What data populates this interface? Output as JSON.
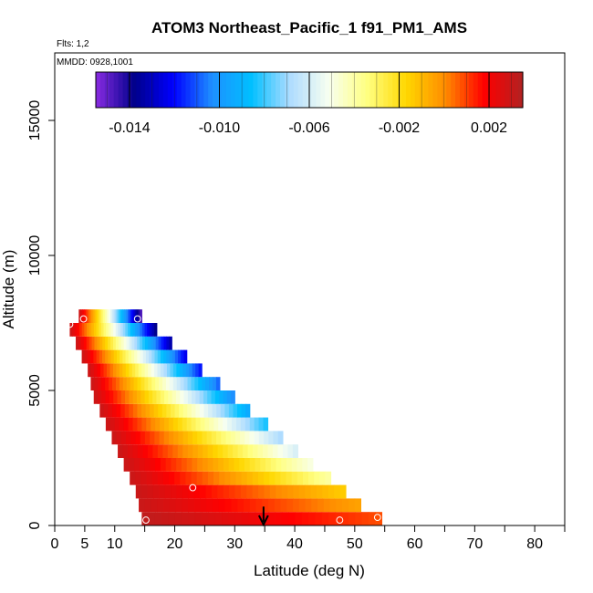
{
  "chart_data": {
    "type": "heatmap",
    "title": "ATOM3 Northeast_Pacific_1 f91_PM1_AMS",
    "annotations": {
      "flights": "Flts: 1,2",
      "dates": "MMDD: 0928,1001"
    },
    "xlabel": "Latitude (deg N)",
    "ylabel": "Altitude (m)",
    "xlim": [
      0,
      85
    ],
    "ylim": [
      0,
      17500
    ],
    "xticks": [
      0,
      5,
      10,
      20,
      30,
      40,
      50,
      60,
      70,
      80
    ],
    "xtick_labels": [
      "0",
      "5",
      "10",
      "20",
      "30",
      "40",
      "50",
      "60",
      "70",
      "80"
    ],
    "xtick_minor": [
      15,
      25,
      35,
      45,
      55,
      65,
      75,
      85
    ],
    "yticks": [
      0,
      5000,
      10000,
      15000
    ],
    "ytick_labels": [
      "0",
      "5000",
      "10000",
      "15000"
    ],
    "colorbar": {
      "min": -0.0155,
      "max": 0.0035,
      "ticks": [
        -0.014,
        -0.01,
        -0.006,
        -0.002,
        0.002
      ],
      "tick_labels": [
        "-0.014",
        "-0.010",
        "-0.006",
        "-0.002",
        "0.002"
      ],
      "colors": [
        "#8a2be2",
        "#00008b",
        "#0000ff",
        "#1e90ff",
        "#00bfff",
        "#aedcff",
        "#f8fff0",
        "#ffff80",
        "#ffd700",
        "#ff8c00",
        "#ff0000",
        "#b22222"
      ]
    },
    "curtain_bands": [
      {
        "alt_bottom": 0,
        "alt_top": 500,
        "lat_start": 14.5,
        "lat_end": 54.5,
        "v_start": 0.0032,
        "v_end": 0.0008
      },
      {
        "alt_bottom": 500,
        "alt_top": 1000,
        "lat_start": 14.0,
        "lat_end": 51.0,
        "v_start": 0.003,
        "v_end": -0.0005
      },
      {
        "alt_bottom": 1000,
        "alt_top": 1500,
        "lat_start": 13.5,
        "lat_end": 48.5,
        "v_start": 0.003,
        "v_end": -0.0015
      },
      {
        "alt_bottom": 1500,
        "alt_top": 2000,
        "lat_start": 12.5,
        "lat_end": 46.0,
        "v_start": 0.003,
        "v_end": -0.004
      },
      {
        "alt_bottom": 2000,
        "alt_top": 2500,
        "lat_start": 11.5,
        "lat_end": 43.0,
        "v_start": 0.003,
        "v_end": -0.005
      },
      {
        "alt_bottom": 2500,
        "alt_top": 3000,
        "lat_start": 10.5,
        "lat_end": 40.5,
        "v_start": 0.003,
        "v_end": -0.006
      },
      {
        "alt_bottom": 3000,
        "alt_top": 3500,
        "lat_start": 9.5,
        "lat_end": 38.0,
        "v_start": 0.003,
        "v_end": -0.007
      },
      {
        "alt_bottom": 3500,
        "alt_top": 4000,
        "lat_start": 8.5,
        "lat_end": 35.5,
        "v_start": 0.003,
        "v_end": -0.0085
      },
      {
        "alt_bottom": 4000,
        "alt_top": 4500,
        "lat_start": 7.5,
        "lat_end": 32.5,
        "v_start": 0.003,
        "v_end": -0.0095
      },
      {
        "alt_bottom": 4500,
        "alt_top": 5000,
        "lat_start": 6.5,
        "lat_end": 30.0,
        "v_start": 0.003,
        "v_end": -0.0105
      },
      {
        "alt_bottom": 5000,
        "alt_top": 5500,
        "lat_start": 6.0,
        "lat_end": 27.5,
        "v_start": 0.003,
        "v_end": -0.011
      },
      {
        "alt_bottom": 5500,
        "alt_top": 6000,
        "lat_start": 5.5,
        "lat_end": 24.5,
        "v_start": 0.003,
        "v_end": -0.012
      },
      {
        "alt_bottom": 6000,
        "alt_top": 6500,
        "lat_start": 4.5,
        "lat_end": 22.0,
        "v_start": 0.003,
        "v_end": -0.0125
      },
      {
        "alt_bottom": 6500,
        "alt_top": 7000,
        "lat_start": 3.5,
        "lat_end": 19.5,
        "v_start": 0.003,
        "v_end": -0.0135
      },
      {
        "alt_bottom": 7000,
        "alt_top": 7500,
        "lat_start": 2.5,
        "lat_end": 17.0,
        "v_start": 0.003,
        "v_end": -0.014
      },
      {
        "alt_bottom": 7500,
        "alt_top": 8000,
        "lat_start": 4.0,
        "lat_end": 14.5,
        "v_start": 0.003,
        "v_end": -0.015
      }
    ],
    "markers": [
      {
        "lat": 2.5,
        "alt": 7450
      },
      {
        "lat": 4.8,
        "alt": 7650
      },
      {
        "lat": 13.8,
        "alt": 7650
      },
      {
        "lat": 23.0,
        "alt": 1400
      },
      {
        "lat": 15.2,
        "alt": 200
      },
      {
        "lat": 47.5,
        "alt": 200
      },
      {
        "lat": 53.8,
        "alt": 300
      }
    ],
    "arrow": {
      "lat": 34.8,
      "alt_top": 700,
      "alt_bottom": 0
    },
    "grid": false
  }
}
